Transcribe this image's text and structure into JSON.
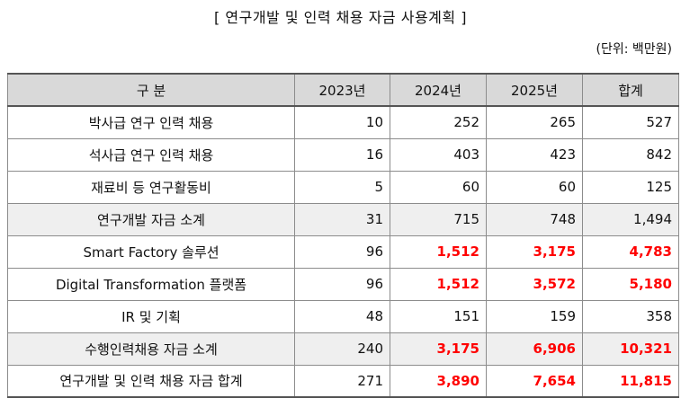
{
  "title": "[  연구개발 및 인력 채용 자금 사용계획  ]",
  "unit": "(단위: 백만원)",
  "headers": [
    "구  분",
    "2023년",
    "2024년",
    "2025년",
    "합계"
  ],
  "rows": [
    {
      "label": "박사급 연구 인력 채용",
      "values": [
        "10",
        "252",
        "265",
        "527"
      ]
    },
    {
      "label": "석사급 연구 인력 채용",
      "values": [
        "16",
        "403",
        "423",
        "842"
      ]
    },
    {
      "label": "재료비 등 연구활동비",
      "values": [
        "5",
        "60",
        "60",
        "125"
      ]
    },
    {
      "label": "연구개발 자금 소계",
      "values": [
        "31",
        "715",
        "748",
        "1,494"
      ]
    },
    {
      "label": "Smart Factory 솔루션",
      "values": [
        "96",
        "1,512",
        "3,175",
        "4,783"
      ]
    },
    {
      "label": "Digital Transformation 플랫폼",
      "values": [
        "96",
        "1,512",
        "3,572",
        "5,180"
      ]
    },
    {
      "label": "IR 및 기획",
      "values": [
        "48",
        "151",
        "159",
        "358"
      ]
    },
    {
      "label": "수행인력채용 자금 소계",
      "values": [
        "240",
        "3,175",
        "6,906",
        "10,321"
      ]
    },
    {
      "label": "연구개발 및 인력 채용 자금 합계",
      "values": [
        "271",
        "3,890",
        "7,654",
        "11,815"
      ]
    }
  ],
  "colors": {
    "highlight": "#ff0000",
    "header_bg": "#d9d9d9",
    "subtotal_bg": "#efefef"
  }
}
